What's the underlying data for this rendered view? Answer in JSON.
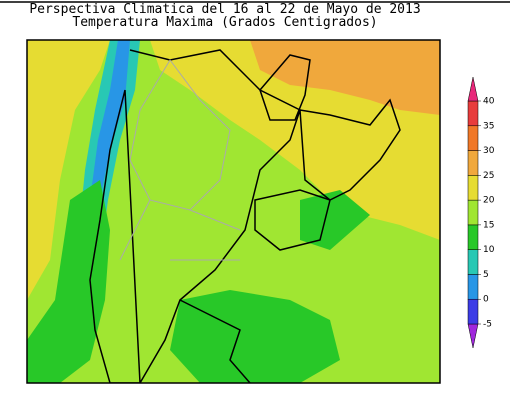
{
  "title": "Perspectiva Climatica del 16 al 22 de Mayo de 2013",
  "subtitle": "Temperatura Maxima (Grados Centigrados)",
  "colorbar": {
    "ticks": [
      -5,
      0,
      5,
      10,
      15,
      20,
      25,
      30,
      35,
      40
    ],
    "colors": [
      "#a028dc",
      "#3c3ce6",
      "#2896e6",
      "#28c8b4",
      "#28c828",
      "#a0e632",
      "#e6dc32",
      "#f0a83c",
      "#f07828",
      "#e83c3c",
      "#e8287a"
    ]
  }
}
